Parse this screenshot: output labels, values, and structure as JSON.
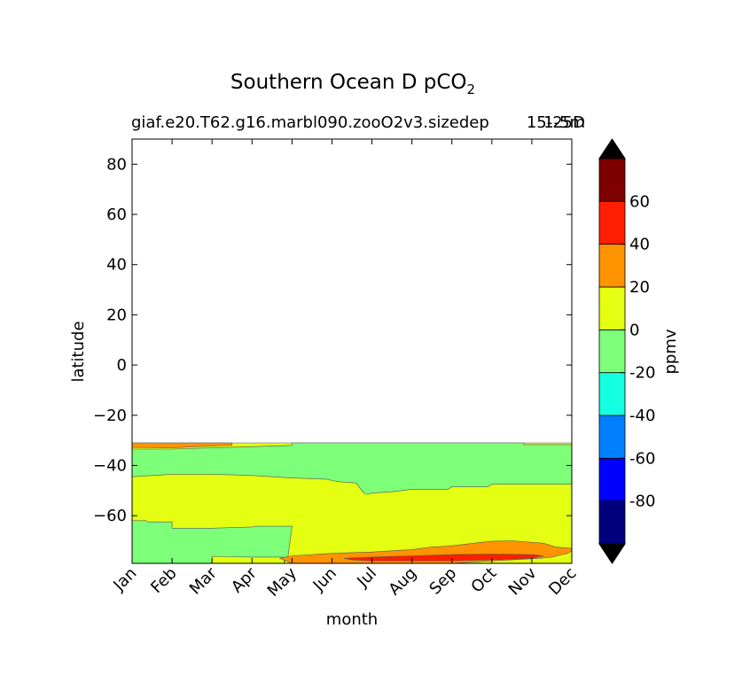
{
  "chart_data": {
    "type": "heatmap",
    "title_main": "Southern Ocean D pCO",
    "title_sub": "2",
    "subtitle_left": "giaf.e20.T62.g16.marbl090.zooO2v3.sizedep",
    "subtitle_right_a": "1-5m",
    "subtitle_right_b": "15-25D",
    "xlabel": "month",
    "ylabel": "latitude",
    "colorbar_label": "ppmv",
    "x_ticks": [
      "Jan",
      "Feb",
      "Mar",
      "Apr",
      "May",
      "Jun",
      "Jul",
      "Aug",
      "Sep",
      "Oct",
      "Nov",
      "Dec"
    ],
    "y_ticks": [
      80,
      60,
      40,
      20,
      0,
      -20,
      -40,
      -60
    ],
    "y_tick_labels": [
      "80",
      "60",
      "40",
      "20",
      "0",
      "−20",
      "−40",
      "−60"
    ],
    "x_range": [
      0,
      11
    ],
    "y_range": [
      -79,
      90
    ],
    "data_lat_max": -31,
    "levels": [
      -100,
      -80,
      -60,
      -40,
      -20,
      0,
      20,
      40,
      60,
      80
    ],
    "colorbar_tick_values": [
      60,
      40,
      20,
      0,
      -20,
      -40,
      -60,
      -80
    ],
    "colorbar_tick_labels": [
      "60",
      "40",
      "20",
      "0",
      "-20",
      "-40",
      "-60",
      "-80"
    ],
    "colors": [
      "#00007f",
      "#0000ff",
      "#0080ff",
      "#15ffe1",
      "#7dff7a",
      "#e4ff12",
      "#ff9400",
      "#ff1e00",
      "#7f0000"
    ],
    "extend_low_color": "#000000",
    "extend_high_color": "#000000",
    "regions": [
      {
        "name": "region-yellow-main",
        "level": "0-20",
        "color": "#e4ff12",
        "polygon": [
          [
            0,
            -31
          ],
          [
            11,
            -31
          ],
          [
            11,
            -79
          ],
          [
            0,
            -79
          ]
        ]
      },
      {
        "name": "region-green-north",
        "level": "-20-0",
        "color": "#7dff7a",
        "polygon": [
          [
            0,
            -33.5
          ],
          [
            1,
            -33.5
          ],
          [
            2,
            -33
          ],
          [
            4,
            -32
          ],
          [
            4,
            -31
          ],
          [
            9.8,
            -31
          ],
          [
            9.8,
            -31.7
          ],
          [
            11,
            -31.7
          ],
          [
            11,
            -47.5
          ],
          [
            10,
            -47.5
          ],
          [
            9,
            -47.5
          ],
          [
            8.9,
            -48.5
          ],
          [
            8,
            -48.5
          ],
          [
            7.9,
            -49.5
          ],
          [
            7,
            -49.5
          ],
          [
            6.5,
            -50.5
          ],
          [
            6,
            -51
          ],
          [
            5.9,
            -51.5
          ],
          [
            5.8,
            -51
          ],
          [
            5.6,
            -47
          ],
          [
            5.2,
            -46.5
          ],
          [
            5,
            -46
          ],
          [
            4.9,
            -45.5
          ],
          [
            4,
            -45
          ],
          [
            3,
            -44
          ],
          [
            2,
            -43.5
          ],
          [
            1,
            -43.5
          ],
          [
            0,
            -44.5
          ]
        ]
      },
      {
        "name": "region-green-south",
        "level": "-20-0",
        "color": "#7dff7a",
        "polygon": [
          [
            0,
            -62
          ],
          [
            0.35,
            -62
          ],
          [
            0.4,
            -62.5
          ],
          [
            1,
            -62.5
          ],
          [
            1,
            -65
          ],
          [
            2,
            -65
          ],
          [
            3,
            -64.5
          ],
          [
            3.1,
            -64.2
          ],
          [
            4,
            -64.2
          ],
          [
            4,
            -64.5
          ],
          [
            3.9,
            -76
          ],
          [
            3.8,
            -79
          ],
          [
            0,
            -79
          ]
        ]
      },
      {
        "name": "region-orange-top",
        "level": "20-40",
        "color": "#ff9400",
        "polygon": [
          [
            0,
            -31
          ],
          [
            2.5,
            -31
          ],
          [
            2.5,
            -32
          ],
          [
            2,
            -32.3
          ],
          [
            1,
            -33
          ],
          [
            0,
            -32.8
          ]
        ]
      },
      {
        "name": "region-yellow-strip",
        "level": "0-20",
        "color": "#e4ff12",
        "polygon": [
          [
            2,
            -76.2
          ],
          [
            3,
            -76.5
          ],
          [
            3.8,
            -76.5
          ],
          [
            3.8,
            -79
          ],
          [
            2,
            -79
          ]
        ]
      },
      {
        "name": "region-orange-south",
        "level": "20-40",
        "color": "#ff9400",
        "polygon": [
          [
            3.7,
            -77
          ],
          [
            4,
            -76
          ],
          [
            5,
            -75
          ],
          [
            6,
            -74.5
          ],
          [
            7,
            -73.5
          ],
          [
            7.5,
            -72.5
          ],
          [
            8,
            -72
          ],
          [
            8.8,
            -70.5
          ],
          [
            9,
            -70.2
          ],
          [
            9.5,
            -70
          ],
          [
            10.3,
            -71
          ],
          [
            10.6,
            -72.5
          ],
          [
            11,
            -73
          ],
          [
            11,
            -74
          ],
          [
            10.9,
            -75
          ],
          [
            10.5,
            -76.5
          ],
          [
            10.2,
            -77
          ],
          [
            9,
            -78
          ],
          [
            8,
            -79
          ],
          [
            4,
            -79
          ]
        ]
      },
      {
        "name": "region-red-south",
        "level": "40-60",
        "color": "#ff1e00",
        "polygon": [
          [
            5.3,
            -77
          ],
          [
            6,
            -76.5
          ],
          [
            7,
            -76
          ],
          [
            8,
            -75.5
          ],
          [
            9,
            -75.3
          ],
          [
            10,
            -75.5
          ],
          [
            10.3,
            -76
          ],
          [
            10,
            -77
          ],
          [
            9,
            -77.6
          ],
          [
            8,
            -78
          ],
          [
            6,
            -78
          ],
          [
            5.5,
            -77.6
          ]
        ]
      }
    ]
  }
}
